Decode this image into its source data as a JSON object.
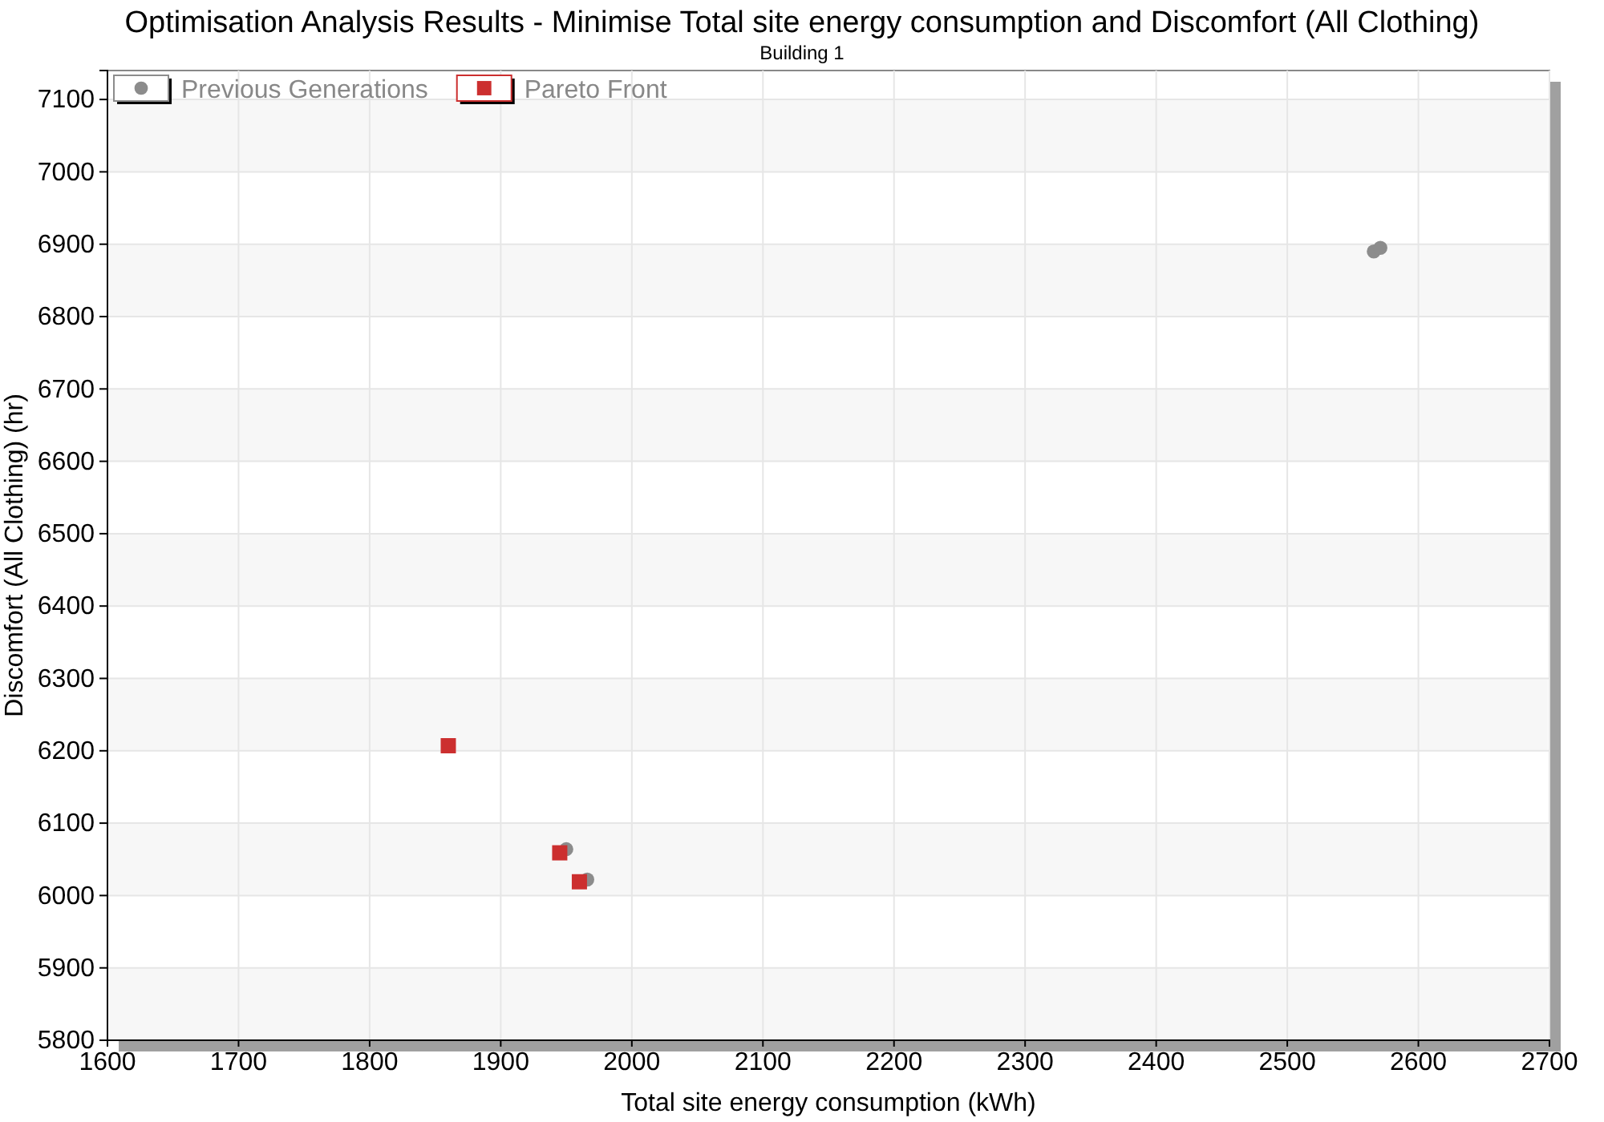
{
  "chart_data": {
    "type": "scatter",
    "title": "Optimisation Analysis Results - Minimise Total site energy consumption and Discomfort (All Clothing)",
    "subtitle": "Building 1",
    "xlabel": "Total site energy consumption (kWh)",
    "ylabel": "Discomfort (All Clothing) (hr)",
    "xlim": [
      1600,
      2700
    ],
    "xticks": [
      1600,
      1700,
      1800,
      1900,
      2000,
      2100,
      2200,
      2300,
      2400,
      2500,
      2600,
      2700
    ],
    "ylim": [
      5800,
      7140
    ],
    "yticks": [
      5800,
      5900,
      6000,
      6100,
      6200,
      6300,
      6400,
      6500,
      6600,
      6700,
      6800,
      6900,
      7000,
      7100
    ],
    "grid": true,
    "legend": "top left",
    "series": [
      {
        "name": "Previous Generations",
        "color": "#8c8c8c",
        "marker": "circle",
        "x": [
          2566,
          2571,
          1950,
          1966
        ],
        "values": [
          6890,
          6895,
          6064,
          6022
        ]
      },
      {
        "name": "Pareto Front",
        "color": "#cc2f2f",
        "marker": "square",
        "x": [
          1860,
          1945,
          1960
        ],
        "values": [
          6207,
          6059,
          6019
        ]
      }
    ]
  }
}
